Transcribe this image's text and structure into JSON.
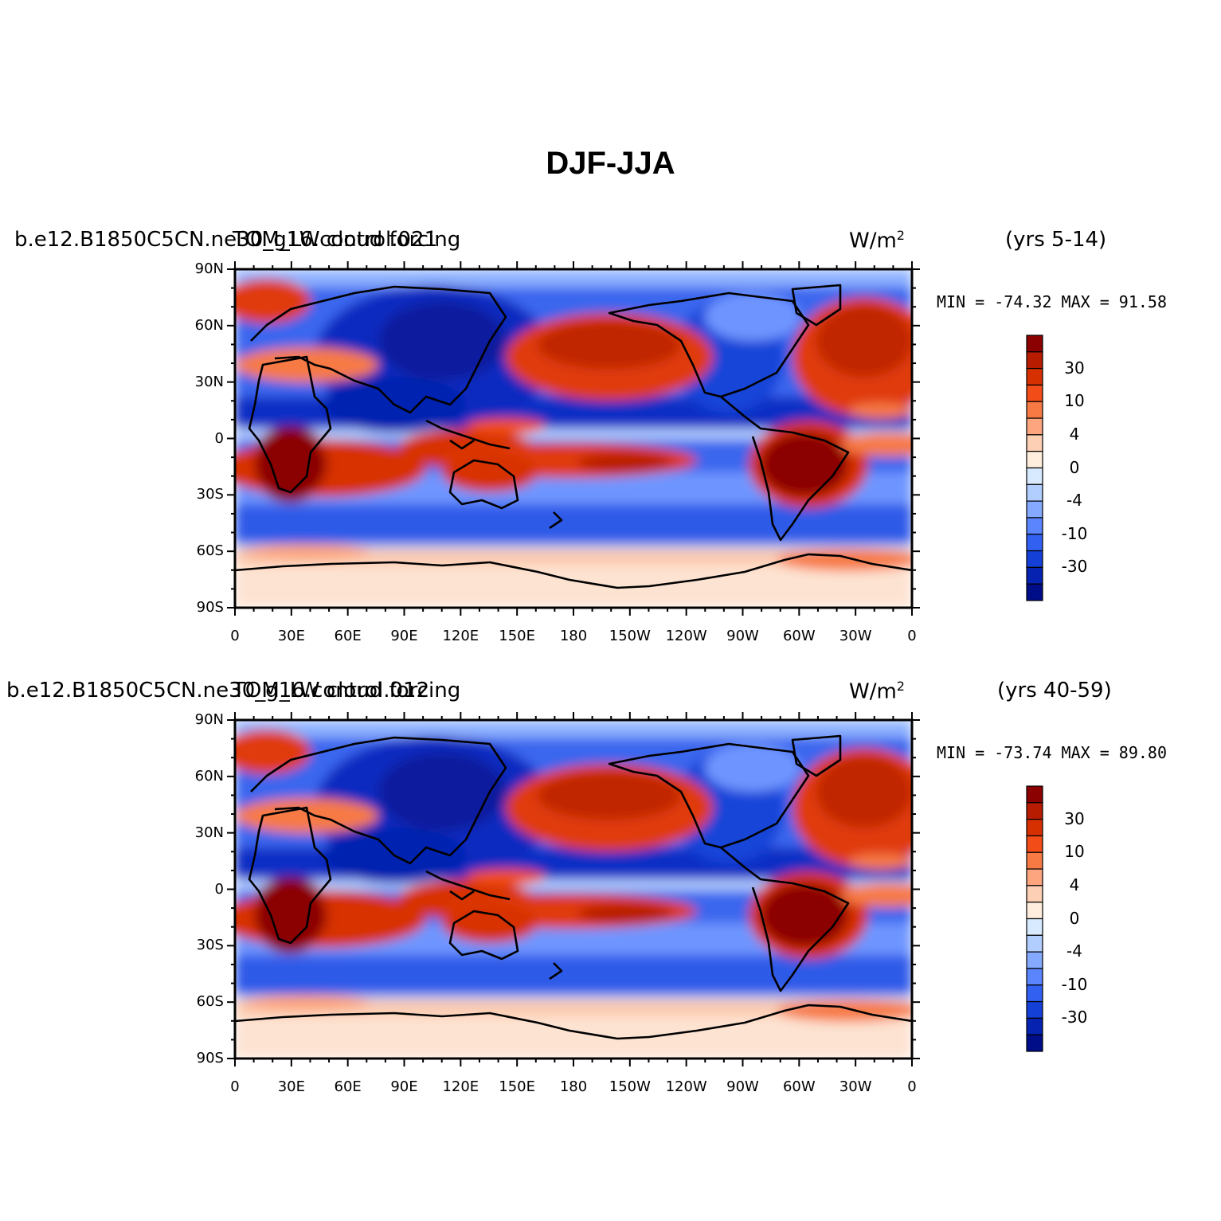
{
  "page_title": "DJF-JJA",
  "panels": [
    {
      "case_a": "b.e12.B1850C5CN.ne30_g16.control.021",
      "case_b": "TOM_LW cloud forcing",
      "units": "W/m",
      "units_sup": "2",
      "years": "(yrs 5-14)",
      "minmax": "MIN = -74.32  MAX =  91.58"
    },
    {
      "case_a": "b.e12.B1850C5CN.ne30_g16.control.012",
      "case_b": "TOM_LW cloud forcing",
      "units": "W/m",
      "units_sup": "2",
      "years": "(yrs 40-59)",
      "minmax": "MIN = -73.74  MAX =  89.80"
    }
  ],
  "axes": {
    "lat_labels": [
      "90N",
      "60N",
      "30N",
      "0",
      "30S",
      "60S",
      "90S"
    ],
    "lon_labels": [
      "0",
      "30E",
      "60E",
      "90E",
      "120E",
      "150E",
      "180",
      "150W",
      "120W",
      "90W",
      "60W",
      "30W",
      "0"
    ]
  },
  "colorbar": {
    "labels": [
      "30",
      "10",
      "4",
      "0",
      "-4",
      "-10",
      "-30"
    ],
    "colors": [
      "#8b0000",
      "#b71c00",
      "#d73000",
      "#f24d18",
      "#f77a45",
      "#fca57e",
      "#fdcfb5",
      "#ffeedd",
      "#d8eaff",
      "#b2cdff",
      "#84a9ff",
      "#5a85ff",
      "#3260f0",
      "#1440d8",
      "#0522b0",
      "#000d88"
    ]
  },
  "palette": {
    "land_outline": "#000000",
    "frame": "#000000"
  }
}
